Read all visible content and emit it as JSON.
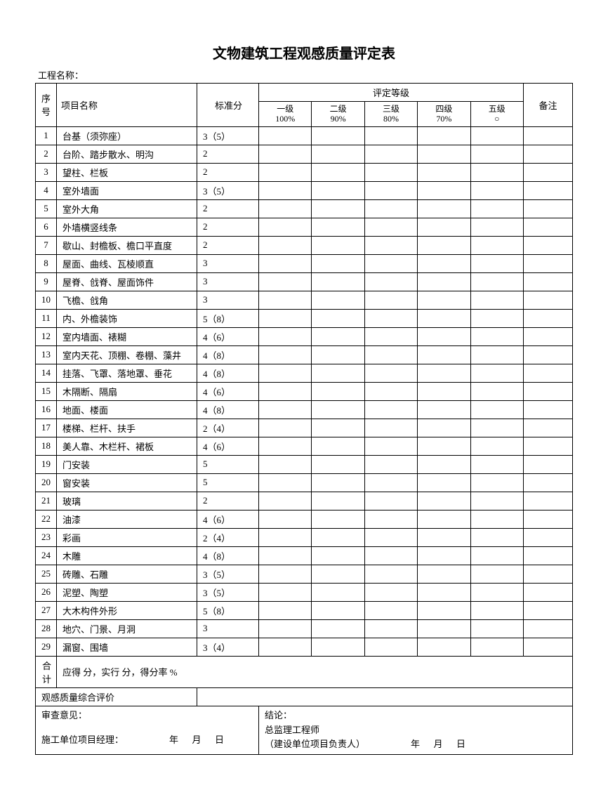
{
  "title": "文物建筑工程观感质量评定表",
  "project_label": "工程名称：",
  "header": {
    "seq": "序号",
    "name": "项目名称",
    "score": "标准分",
    "grade_group": "评定等级",
    "grades": [
      {
        "l1": "一级",
        "l2": "100%"
      },
      {
        "l1": "二级",
        "l2": "90%"
      },
      {
        "l1": "三级",
        "l2": "80%"
      },
      {
        "l1": "四级",
        "l2": "70%"
      },
      {
        "l1": "五级",
        "l2": "○"
      }
    ],
    "remark": "备注"
  },
  "rows": [
    {
      "seq": "1",
      "name": "台基（须弥座）",
      "score": "3（5）"
    },
    {
      "seq": "2",
      "name": "台阶、踏步散水、明沟",
      "score": "2"
    },
    {
      "seq": "3",
      "name": "望柱、栏板",
      "score": "2"
    },
    {
      "seq": "4",
      "name": "室外墙面",
      "score": "3（5）"
    },
    {
      "seq": "5",
      "name": "室外大角",
      "score": "2"
    },
    {
      "seq": "6",
      "name": "外墙横竖线条",
      "score": "2"
    },
    {
      "seq": "7",
      "name": "歇山、封檐板、檐口平直度",
      "score": "2"
    },
    {
      "seq": "8",
      "name": "屋面、曲线、瓦棱顺直",
      "score": "3"
    },
    {
      "seq": "9",
      "name": "屋脊、戗脊、屋面饰件",
      "score": "3"
    },
    {
      "seq": "10",
      "name": "飞檐、戗角",
      "score": "3"
    },
    {
      "seq": "11",
      "name": "内、外檐装饰",
      "score": "5（8）"
    },
    {
      "seq": "12",
      "name": "室内墙面、裱糊",
      "score": "4（6）"
    },
    {
      "seq": "13",
      "name": "室内天花、顶棚、卷棚、藻井",
      "score": "4（8）"
    },
    {
      "seq": "14",
      "name": "挂落、飞罩、落地罩、垂花",
      "score": "4（8）"
    },
    {
      "seq": "15",
      "name": "木隔断、隔扇",
      "score": "4（6）"
    },
    {
      "seq": "16",
      "name": "地面、楼面",
      "score": "4（8）"
    },
    {
      "seq": "17",
      "name": "楼梯、栏杆、扶手",
      "score": "2（4）"
    },
    {
      "seq": "18",
      "name": "美人靠、木栏杆、裙板",
      "score": "4（6）"
    },
    {
      "seq": "19",
      "name": "门安装",
      "score": "5"
    },
    {
      "seq": "20",
      "name": "窗安装",
      "score": "5"
    },
    {
      "seq": "21",
      "name": "玻璃",
      "score": "2"
    },
    {
      "seq": "22",
      "name": "油漆",
      "score": "4（6）"
    },
    {
      "seq": "23",
      "name": "彩画",
      "score": "2（4）"
    },
    {
      "seq": "24",
      "name": "木雕",
      "score": "4（8）"
    },
    {
      "seq": "25",
      "name": "砖雕、石雕",
      "score": "3（5）"
    },
    {
      "seq": "26",
      "name": "泥塑、陶塑",
      "score": "3（5）"
    },
    {
      "seq": "27",
      "name": "大木构件外形",
      "score": "5（8）"
    },
    {
      "seq": "28",
      "name": "地穴、门景、月洞",
      "score": "3"
    },
    {
      "seq": "29",
      "name": "漏窗、围墙",
      "score": "3（4）"
    }
  ],
  "total_label": "合计",
  "total_text": "应得           分，实行           分，得分率           %",
  "overall_label": "观感质量综合评价",
  "left_block": {
    "line1": "审查意见：",
    "line2": "施工单位项目经理：                    年      月      日"
  },
  "right_block": {
    "line1": "结论：",
    "line2": "总监理工程师",
    "line3": "（建设单位项目负责人）                    年      月      日"
  }
}
